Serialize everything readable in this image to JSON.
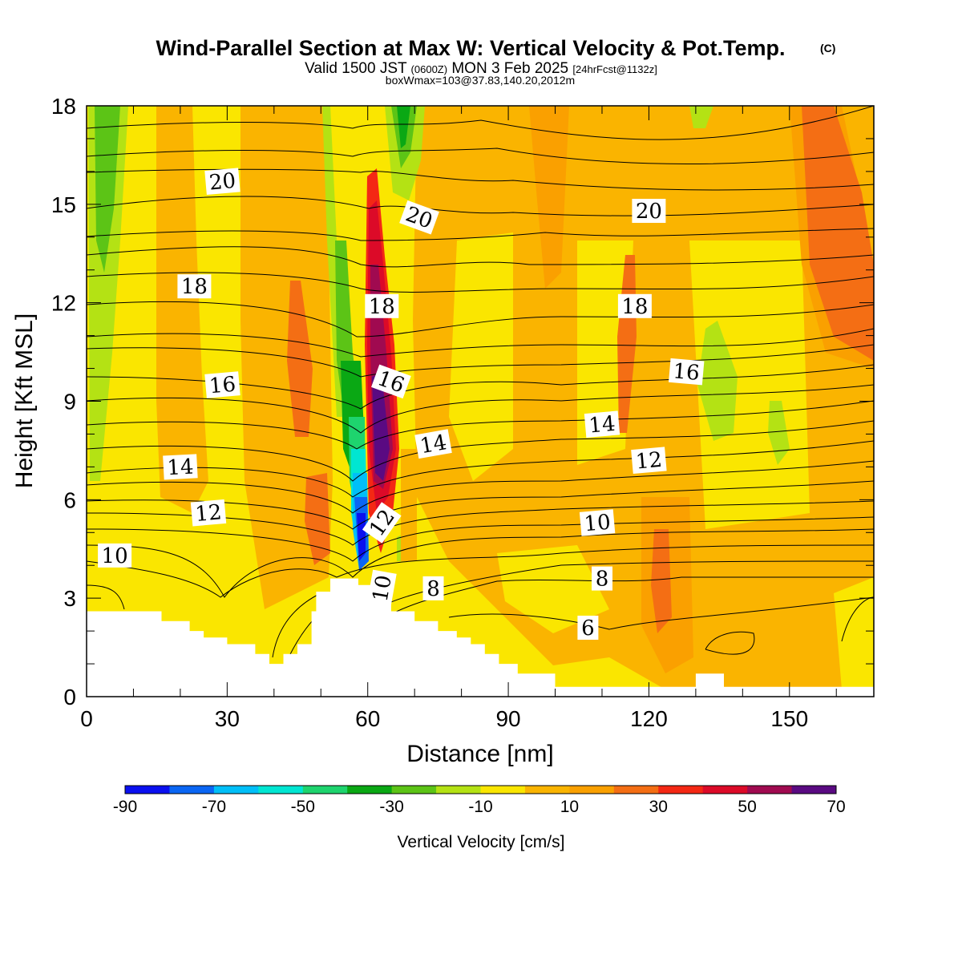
{
  "title": {
    "main": "Wind-Parallel Section at Max W: Vertical Velocity & Pot.Temp.",
    "main_mark": "(C)",
    "valid_prefix": "Valid 1500 JST",
    "valid_utc": "(0600Z)",
    "valid_date": "MON 3 Feb 2025",
    "valid_fcst": "[24hrFcst@1132z]",
    "box_info": "boxWmax=103@37.83,140.20,2012m"
  },
  "chart_data": {
    "type": "heatmap",
    "xlabel": "Distance [nm]",
    "ylabel": "Height [Kft MSL]",
    "xlim": [
      0,
      168
    ],
    "ylim": [
      0,
      18
    ],
    "x_ticks": [
      0,
      30,
      60,
      90,
      120,
      150
    ],
    "y_ticks": [
      0,
      3,
      6,
      9,
      12,
      15,
      18
    ],
    "colorbar": {
      "title": "Vertical Velocity [cm/s]",
      "levels": [
        -90,
        -80,
        -70,
        -60,
        -50,
        -40,
        -30,
        -20,
        -10,
        0,
        10,
        20,
        30,
        40,
        50,
        60,
        70
      ],
      "tick_labels": [
        "-90",
        "-70",
        "-50",
        "-30",
        "-10",
        "10",
        "30",
        "50",
        "70"
      ],
      "tick_values": [
        -90,
        -70,
        -50,
        -30,
        -10,
        10,
        30,
        50,
        70
      ],
      "colors": [
        "#0a10f0",
        "#0a66f4",
        "#00bff8",
        "#00e6d2",
        "#1ed46e",
        "#0aa814",
        "#5cc416",
        "#b4e214",
        "#fae600",
        "#fab400",
        "#faa000",
        "#f46e14",
        "#f42814",
        "#dc0a28",
        "#a00a50",
        "#5a0a82"
      ]
    },
    "terrain_top_kft": [
      [
        0,
        2.6
      ],
      [
        16,
        2.6
      ],
      [
        16,
        2.3
      ],
      [
        22,
        2.3
      ],
      [
        22,
        2.0
      ],
      [
        25,
        2.0
      ],
      [
        25,
        1.8
      ],
      [
        30,
        1.8
      ],
      [
        30,
        1.6
      ],
      [
        36,
        1.6
      ],
      [
        36,
        1.3
      ],
      [
        39,
        1.3
      ],
      [
        39,
        1.0
      ],
      [
        42,
        1.0
      ],
      [
        42,
        1.3
      ],
      [
        45,
        1.3
      ],
      [
        45,
        1.6
      ],
      [
        48,
        1.6
      ],
      [
        48,
        2.6
      ],
      [
        49,
        2.6
      ],
      [
        49,
        3.2
      ],
      [
        52,
        3.2
      ],
      [
        52,
        3.6
      ],
      [
        58,
        3.6
      ],
      [
        58,
        3.4
      ],
      [
        63,
        3.4
      ],
      [
        63,
        3.0
      ],
      [
        65,
        3.0
      ],
      [
        65,
        2.6
      ],
      [
        70,
        2.6
      ],
      [
        70,
        2.3
      ],
      [
        75,
        2.3
      ],
      [
        75,
        2.0
      ],
      [
        79,
        2.0
      ],
      [
        79,
        1.8
      ],
      [
        82,
        1.8
      ],
      [
        82,
        1.6
      ],
      [
        85,
        1.6
      ],
      [
        85,
        1.3
      ],
      [
        88,
        1.3
      ],
      [
        88,
        1.0
      ],
      [
        92,
        1.0
      ],
      [
        92,
        0.7
      ],
      [
        100,
        0.7
      ],
      [
        100,
        0.3
      ],
      [
        130,
        0.3
      ],
      [
        130,
        0.7
      ],
      [
        136,
        0.7
      ],
      [
        136,
        0.3
      ],
      [
        168,
        0.3
      ]
    ],
    "theta_contours": [
      {
        "label": "6",
        "label_at": [
          107,
          2.1
        ]
      },
      {
        "label": "8",
        "label_at": [
          74,
          3.3
        ]
      },
      {
        "label": "8",
        "label_at": [
          110,
          3.6
        ]
      },
      {
        "label": "10",
        "label_at": [
          6,
          4.3
        ]
      },
      {
        "label": "10",
        "label_at": [
          63,
          3.3
        ]
      },
      {
        "label": "10",
        "label_at": [
          109,
          5.3
        ]
      },
      {
        "label": "12",
        "label_at": [
          26,
          5.6
        ]
      },
      {
        "label": "12",
        "label_at": [
          63,
          5.3
        ]
      },
      {
        "label": "12",
        "label_at": [
          120,
          7.2
        ]
      },
      {
        "label": "14",
        "label_at": [
          20,
          7.0
        ]
      },
      {
        "label": "14",
        "label_at": [
          74,
          7.7
        ]
      },
      {
        "label": "14",
        "label_at": [
          110,
          8.3
        ]
      },
      {
        "label": "16",
        "label_at": [
          29,
          9.5
        ]
      },
      {
        "label": "16",
        "label_at": [
          65,
          9.6
        ]
      },
      {
        "label": "16",
        "label_at": [
          128,
          9.9
        ]
      },
      {
        "label": "18",
        "label_at": [
          23,
          12.5
        ]
      },
      {
        "label": "18",
        "label_at": [
          63,
          11.9
        ]
      },
      {
        "label": "18",
        "label_at": [
          117,
          11.9
        ]
      },
      {
        "label": "20",
        "label_at": [
          29,
          15.7
        ]
      },
      {
        "label": "20",
        "label_at": [
          71,
          14.6
        ]
      },
      {
        "label": "20",
        "label_at": [
          120,
          14.8
        ]
      }
    ]
  }
}
